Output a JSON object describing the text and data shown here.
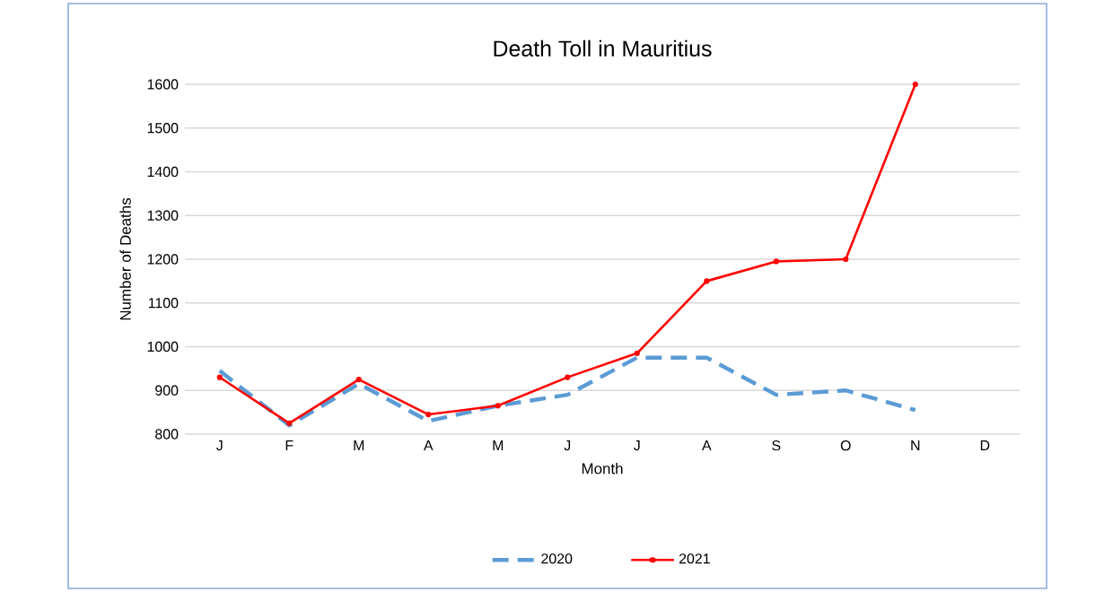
{
  "chart_data": {
    "type": "line",
    "title": "Death Toll in Mauritius",
    "xlabel": "Month",
    "ylabel": "Number of Deaths",
    "categories": [
      "J",
      "F",
      "M",
      "A",
      "M",
      "J",
      "J",
      "A",
      "S",
      "O",
      "N",
      "D"
    ],
    "series": [
      {
        "name": "2020",
        "color": "#5b9bd5",
        "line_style": "dashed",
        "marker": "none",
        "values": [
          945,
          820,
          915,
          830,
          865,
          890,
          975,
          975,
          890,
          900,
          855,
          null
        ]
      },
      {
        "name": "2021",
        "color": "#ff0000",
        "line_style": "solid",
        "marker": "circle",
        "values": [
          930,
          825,
          925,
          845,
          865,
          930,
          985,
          1150,
          1195,
          1200,
          1600,
          null
        ]
      }
    ],
    "ylim": [
      800,
      1600
    ],
    "yticks": [
      800,
      900,
      1000,
      1100,
      1200,
      1300,
      1400,
      1500,
      1600
    ],
    "grid": "y",
    "legend": "bottom"
  }
}
